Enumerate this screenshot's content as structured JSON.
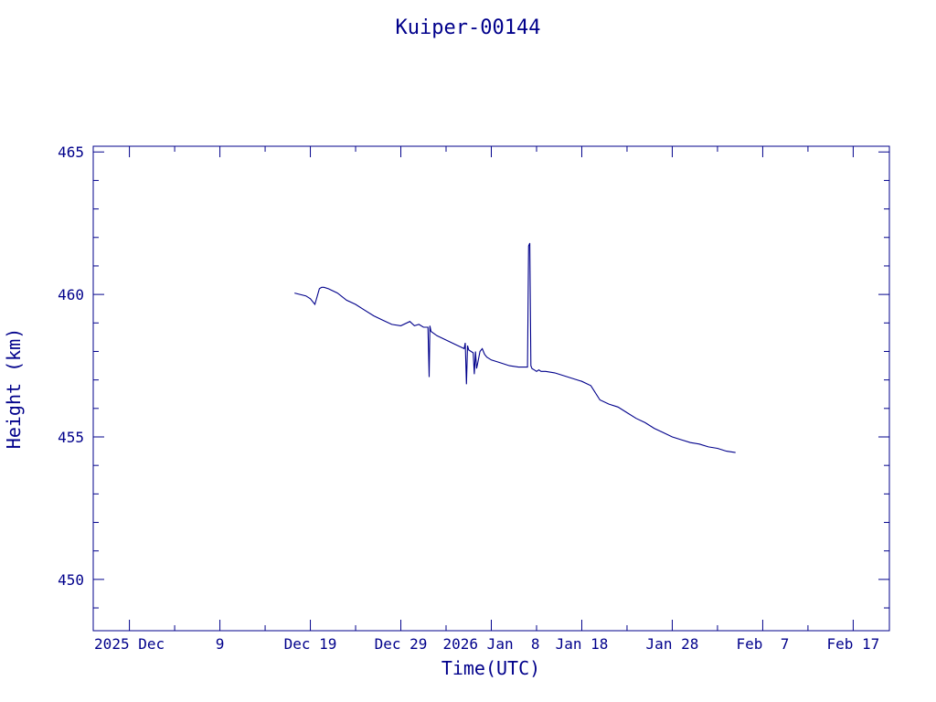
{
  "colors": {
    "axis": "#00008b",
    "line": "#00008b",
    "background": "#ffffff"
  },
  "chart_data": {
    "type": "line",
    "title": "Kuiper-00144",
    "xlabel": "Time(UTC)",
    "ylabel": "Height (km)",
    "x_is_date": true,
    "xlim": [
      "2025-11-25",
      "2026-02-21"
    ],
    "ylim": [
      448.2,
      465.2
    ],
    "grid": false,
    "legend": "none",
    "x_ticks": [
      {
        "date": "2025-11-29",
        "label": "2025 Dec"
      },
      {
        "date": "2025-12-09",
        "label": "9"
      },
      {
        "date": "2025-12-19",
        "label": "Dec 19"
      },
      {
        "date": "2025-12-29",
        "label": "Dec 29"
      },
      {
        "date": "2026-01-08",
        "label": "2026 Jan  8"
      },
      {
        "date": "2026-01-18",
        "label": "Jan 18"
      },
      {
        "date": "2026-01-28",
        "label": "Jan 28"
      },
      {
        "date": "2026-02-07",
        "label": "Feb  7"
      },
      {
        "date": "2026-02-17",
        "label": "Feb 17"
      }
    ],
    "y_ticks": [
      450,
      455,
      460,
      465
    ],
    "series": [
      {
        "color": "#00008b",
        "x": [
          "2025-12-17 06:00",
          "2025-12-18 12:00",
          "2025-12-19 00:00",
          "2025-12-19 12:00",
          "2025-12-20 00:00",
          "2025-12-20 06:00",
          "2025-12-20 12:00",
          "2025-12-21 00:00",
          "2025-12-22 00:00",
          "2025-12-23 00:00",
          "2025-12-24 00:00",
          "2025-12-25 00:00",
          "2025-12-26 00:00",
          "2025-12-27 00:00",
          "2025-12-28 00:00",
          "2025-12-29 00:00",
          "2025-12-30 00:00",
          "2025-12-30 12:00",
          "2025-12-31 00:00",
          "2025-12-31 12:00",
          "2026-01-01 00:00",
          "2026-01-01 03:00",
          "2026-01-01 05:00",
          "2026-01-01 08:00",
          "2026-01-02 00:00",
          "2026-01-03 00:00",
          "2026-01-04 00:00",
          "2026-01-05 00:00",
          "2026-01-05 03:00",
          "2026-01-05 06:00",
          "2026-01-05 09:00",
          "2026-01-05 12:00",
          "2026-01-06 00:00",
          "2026-01-06 03:00",
          "2026-01-06 06:00",
          "2026-01-06 09:00",
          "2026-01-06 12:00",
          "2026-01-06 18:00",
          "2026-01-07 00:00",
          "2026-01-07 06:00",
          "2026-01-07 12:00",
          "2026-01-08 00:00",
          "2026-01-09 00:00",
          "2026-01-10 00:00",
          "2026-01-11 00:00",
          "2026-01-12 00:00",
          "2026-01-12 03:00",
          "2026-01-12 06:00",
          "2026-01-12 09:00",
          "2026-01-12 12:00",
          "2026-01-12 18:00",
          "2026-01-13 00:00",
          "2026-01-13 06:00",
          "2026-01-13 12:00",
          "2026-01-14 00:00",
          "2026-01-15 00:00",
          "2026-01-16 00:00",
          "2026-01-17 00:00",
          "2026-01-18 00:00",
          "2026-01-19 00:00",
          "2026-01-20 00:00",
          "2026-01-21 00:00",
          "2026-01-22 00:00",
          "2026-01-23 00:00",
          "2026-01-24 00:00",
          "2026-01-25 00:00",
          "2026-01-26 00:00",
          "2026-01-27 00:00",
          "2026-01-28 00:00",
          "2026-01-29 00:00",
          "2026-01-30 00:00",
          "2026-01-31 00:00",
          "2026-02-01 00:00",
          "2026-02-02 00:00",
          "2026-02-03 00:00",
          "2026-02-04 00:00"
        ],
        "y": [
          460.05,
          459.95,
          459.85,
          459.65,
          460.2,
          460.25,
          460.25,
          460.2,
          460.05,
          459.8,
          459.65,
          459.45,
          459.25,
          459.1,
          458.95,
          458.9,
          459.05,
          458.9,
          458.95,
          458.85,
          458.85,
          457.1,
          458.9,
          458.7,
          458.55,
          458.4,
          458.25,
          458.1,
          458.3,
          456.85,
          458.2,
          458.05,
          457.95,
          457.2,
          458.0,
          457.4,
          457.6,
          458.0,
          458.1,
          457.9,
          457.8,
          457.7,
          457.6,
          457.5,
          457.45,
          457.45,
          461.7,
          461.8,
          457.5,
          457.4,
          457.35,
          457.3,
          457.35,
          457.3,
          457.3,
          457.25,
          457.15,
          457.05,
          456.95,
          456.8,
          456.3,
          456.15,
          456.05,
          455.85,
          455.65,
          455.5,
          455.3,
          455.15,
          455.0,
          454.9,
          454.8,
          454.75,
          454.65,
          454.6,
          454.5,
          454.45
        ]
      }
    ]
  }
}
